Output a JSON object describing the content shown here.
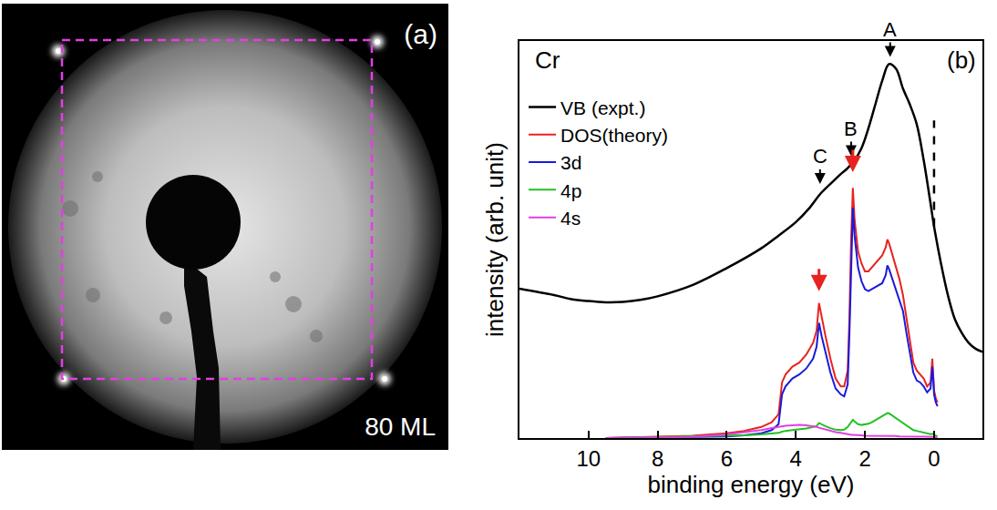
{
  "panel_a": {
    "label": "(a)",
    "caption": "80 ML"
  },
  "chart_data": {
    "type": "line",
    "label": "(b)",
    "element": "Cr",
    "xlabel": "binding energy (eV)",
    "ylabel": "intensity (arb. unit)",
    "xlim": [
      12,
      -1.4
    ],
    "xticks": [
      10,
      8,
      6,
      4,
      2,
      0
    ],
    "ylim": [
      0,
      100
    ],
    "yticks": [],
    "tick_labels": "x",
    "grid": false,
    "legend": "upper left",
    "series": [
      {
        "name": "VB (expt.)",
        "color": "#000000",
        "x": [
          12,
          11,
          10.5,
          10,
          9.5,
          9,
          8.5,
          8,
          7,
          6,
          5,
          4.5,
          4,
          3.6,
          3.3,
          3,
          2.7,
          2.5,
          2.3,
          2.1,
          1.9,
          1.7,
          1.5,
          1.3,
          1.1,
          0.9,
          0.7,
          0.5,
          0.3,
          0.1,
          0,
          -0.2,
          -0.4,
          -0.6,
          -0.8,
          -1,
          -1.2,
          -1.4
        ],
        "values": [
          37.6,
          36,
          35,
          34.5,
          34.2,
          34.3,
          34.8,
          35.7,
          38.5,
          42.8,
          47.8,
          51,
          54.4,
          58,
          61.4,
          64,
          66.5,
          68,
          70,
          73,
          78,
          84,
          90,
          94.2,
          93,
          88,
          84,
          79,
          70,
          59,
          53.3,
          44,
          36,
          30,
          26.5,
          24,
          22.5,
          21.7
        ]
      },
      {
        "name": "DOS(theory)",
        "color": "#e8231f",
        "x": [
          9.5,
          8,
          7,
          6,
          5.5,
          5,
          4.7,
          4.5,
          4.4,
          4.3,
          4.1,
          3.9,
          3.7,
          3.5,
          3.4,
          3.33,
          3.25,
          3.15,
          3.0,
          2.85,
          2.7,
          2.6,
          2.5,
          2.45,
          2.4,
          2.35,
          2.3,
          2.2,
          2.1,
          2.0,
          1.9,
          1.8,
          1.7,
          1.6,
          1.5,
          1.4,
          1.35,
          1.3,
          1.2,
          1.1,
          1.0,
          0.9,
          0.8,
          0.7,
          0.6,
          0.5,
          0.4,
          0.3,
          0.2,
          0.1,
          0.05,
          0.02,
          0,
          -0.05,
          -0.1
        ],
        "values": [
          0,
          0.3,
          0.6,
          1.2,
          1.8,
          2.8,
          4,
          6,
          14,
          16,
          18,
          19,
          21,
          24,
          27,
          34,
          30,
          26,
          20,
          15,
          13,
          13,
          17,
          30,
          50,
          63,
          55,
          47,
          44,
          42,
          42,
          43,
          44,
          45,
          46,
          48,
          50,
          49,
          46,
          43,
          40,
          36,
          30,
          24,
          19,
          17,
          16,
          15,
          13,
          14,
          20,
          16,
          12,
          10,
          9
        ]
      },
      {
        "name": "3d",
        "color": "#1a1adb",
        "x": [
          9.5,
          8,
          7,
          6,
          5.5,
          5,
          4.7,
          4.5,
          4.4,
          4.3,
          4.1,
          3.9,
          3.7,
          3.5,
          3.4,
          3.33,
          3.25,
          3.15,
          3.0,
          2.85,
          2.7,
          2.6,
          2.5,
          2.45,
          2.4,
          2.35,
          2.3,
          2.2,
          2.1,
          2.0,
          1.9,
          1.8,
          1.7,
          1.6,
          1.5,
          1.4,
          1.35,
          1.3,
          1.2,
          1.1,
          1.0,
          0.9,
          0.8,
          0.7,
          0.6,
          0.5,
          0.4,
          0.3,
          0.2,
          0.1,
          0.05,
          0.02,
          0,
          -0.05,
          -0.1
        ],
        "values": [
          0,
          0.1,
          0.2,
          0.4,
          0.7,
          1.2,
          2,
          3.5,
          11,
          13,
          15,
          16,
          17.5,
          20,
          23,
          29,
          25.5,
          22,
          16.5,
          12.5,
          11,
          10.5,
          13.5,
          26,
          45,
          58,
          51,
          43,
          39.5,
          37.5,
          37,
          37.5,
          38,
          38.5,
          39,
          41,
          43.5,
          42.5,
          40,
          37.5,
          35,
          32,
          26.5,
          21,
          16.5,
          14.5,
          14,
          13,
          11.5,
          12.5,
          18,
          14.5,
          11,
          9,
          8
        ]
      },
      {
        "name": "4p",
        "color": "#22c022",
        "x": [
          9.5,
          8,
          7,
          6,
          5.5,
          5,
          4.7,
          4.5,
          4.4,
          4.3,
          4.1,
          3.9,
          3.7,
          3.5,
          3.4,
          3.33,
          3.25,
          3.15,
          3.0,
          2.85,
          2.7,
          2.6,
          2.5,
          2.45,
          2.4,
          2.35,
          2.3,
          2.2,
          2.1,
          2.0,
          1.9,
          1.8,
          1.7,
          1.6,
          1.5,
          1.4,
          1.35,
          1.3,
          1.2,
          1.1,
          1.0,
          0.9,
          0.8,
          0.7,
          0.6,
          0.5,
          0.4,
          0.3,
          0.2,
          0.1,
          0.05,
          0.02,
          0,
          -0.05,
          -0.1
        ],
        "values": [
          0,
          0.2,
          0.4,
          0.6,
          0.7,
          0.9,
          1.1,
          1.3,
          1.6,
          1.8,
          2,
          2.2,
          2.4,
          2.8,
          3,
          3.8,
          3.4,
          3,
          2.5,
          2.1,
          2,
          2.1,
          2.8,
          3.5,
          4.2,
          4.6,
          4.2,
          3.5,
          3.3,
          3.4,
          3.6,
          4,
          4.5,
          5,
          5.5,
          6,
          6.3,
          6.2,
          5.6,
          5,
          4.4,
          3.8,
          3,
          2.5,
          2,
          1.8,
          1.6,
          1.4,
          1.2,
          1,
          1.1,
          0.9,
          0.8,
          0.6,
          0.5
        ]
      },
      {
        "name": "4s",
        "color": "#e040e0",
        "x": [
          9.5,
          8,
          7,
          6,
          5.5,
          5,
          4.7,
          4.5,
          4.4,
          4.3,
          4.1,
          3.9,
          3.7,
          3.5,
          3.4,
          3.33,
          3.25,
          3.15,
          3.0,
          2.85,
          2.7,
          2.6,
          2.5,
          2.45,
          2.4,
          2.35,
          2.3,
          2.2,
          2.1,
          2.0,
          1.9,
          1.8,
          1.7,
          1.6,
          1.5,
          1.4,
          1.35,
          1.3,
          1.2,
          1.1,
          1.0,
          0.9,
          0.8,
          0.7,
          0.6,
          0.5,
          0.4,
          0.3,
          0.2,
          0.1,
          0.05,
          0.02,
          0,
          -0.05,
          -0.1
        ],
        "values": [
          0,
          0.1,
          0.3,
          0.9,
          1.4,
          2,
          2.5,
          2.8,
          3,
          3.1,
          3.2,
          3.3,
          3.2,
          3,
          2.8,
          2.6,
          2.4,
          2.1,
          1.8,
          1.5,
          1.3,
          1.1,
          1,
          0.9,
          0.8,
          0.8,
          0.8,
          0.7,
          0.7,
          0.6,
          0.6,
          0.6,
          0.6,
          0.5,
          0.5,
          0.5,
          0.5,
          0.5,
          0.5,
          0.5,
          0.4,
          0.4,
          0.4,
          0.4,
          0.4,
          0.3,
          0.3,
          0.3,
          0.3,
          0.3,
          0.3,
          0.3,
          0.3,
          0.2,
          0.2
        ]
      }
    ],
    "annotations": [
      {
        "text": "A",
        "x": 1.27,
        "y": 96
      },
      {
        "text": "B",
        "x": 2.4,
        "y": 71
      },
      {
        "text": "C",
        "x": 3.3,
        "y": 64
      }
    ],
    "arrows": [
      {
        "x": 3.33,
        "y": 37,
        "color": "#e8231f"
      },
      {
        "x": 2.35,
        "y": 67,
        "color": "#e8231f"
      }
    ],
    "reference_line": {
      "x": 0,
      "y": [
        53.3,
        80
      ]
    }
  }
}
